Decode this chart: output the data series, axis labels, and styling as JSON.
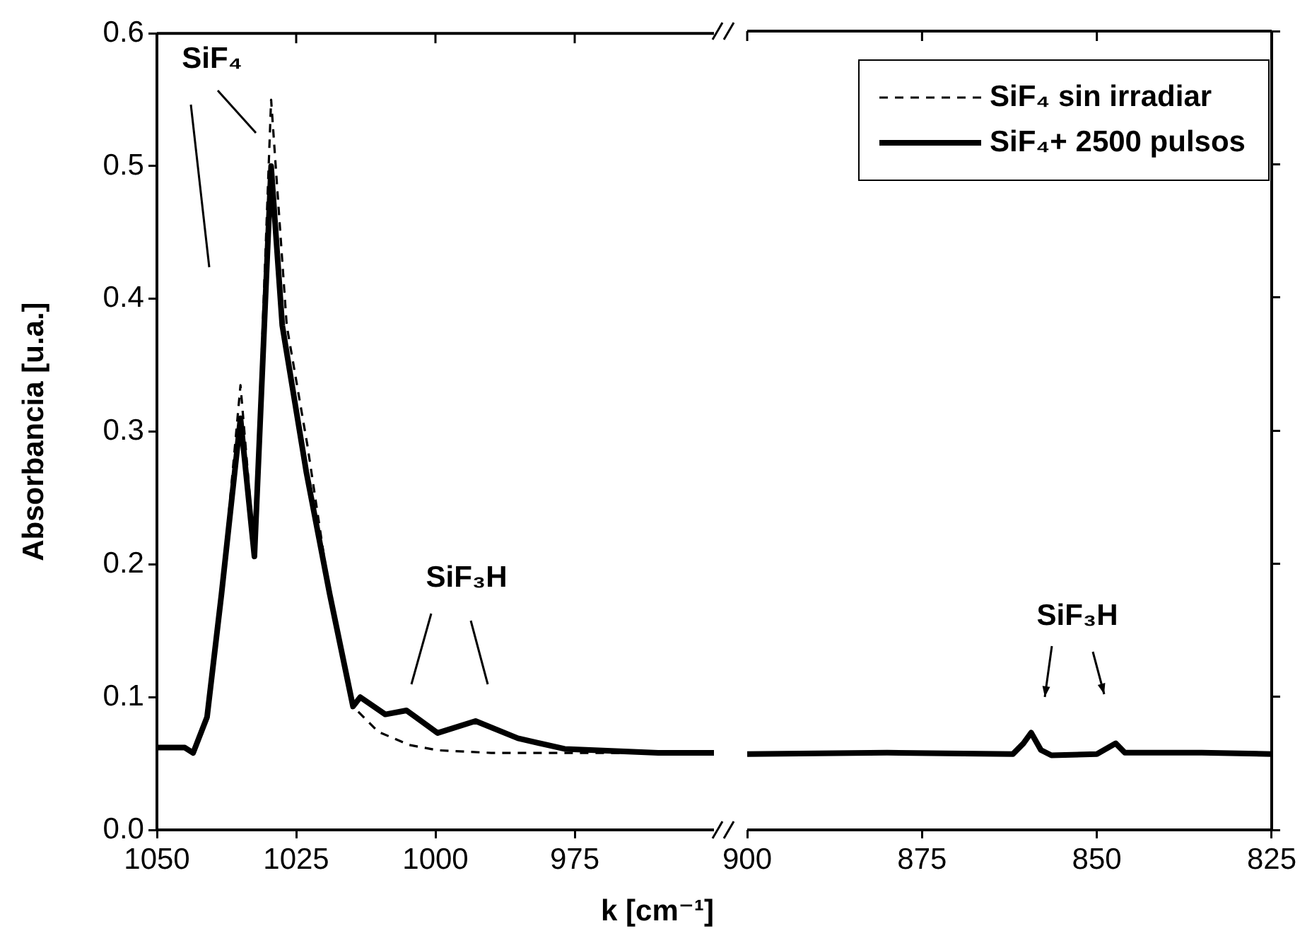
{
  "chart_data": [
    {
      "type": "line",
      "xlabel": "k [cm⁻¹]",
      "ylabel": "Absorbancia [u.a.]",
      "xlim": [
        1050,
        950
      ],
      "xticks": [
        1050,
        1025,
        1000,
        975
      ],
      "ylim": [
        0,
        0.6
      ],
      "yticks": [
        {
          "value": 0,
          "label": "0.0"
        },
        0.1,
        0.2,
        0.3,
        0.4,
        0.5,
        0.6
      ],
      "annotations": [
        "SiF₄",
        "SiF₃H"
      ],
      "series": [
        {
          "color": "#000000",
          "line_style": "dashed",
          "x": [
            1050,
            1045,
            1043.5,
            1041,
            1038.4,
            1035,
            1032.5,
            1029.5,
            1026.7,
            1023,
            1019,
            1014.8,
            1010.3,
            1004.7,
            999.6,
            990,
            970,
            950
          ],
          "values": [
            0.062,
            0.062,
            0.058,
            0.085,
            0.178,
            0.335,
            0.21,
            0.55,
            0.38,
            0.29,
            0.178,
            0.093,
            0.074,
            0.064,
            0.06,
            0.058,
            0.058,
            0.058
          ]
        },
        {
          "color": "#000000",
          "line_style": "solid",
          "x": [
            1050,
            1045,
            1043.5,
            1041,
            1038.4,
            1035,
            1032.5,
            1029.5,
            1027.5,
            1023.2,
            1019,
            1014.8,
            1013.5,
            1009,
            1005.2,
            999.6,
            992.8,
            985.2,
            976.8,
            960,
            950
          ],
          "values": [
            0.062,
            0.062,
            0.058,
            0.085,
            0.178,
            0.31,
            0.206,
            0.5,
            0.38,
            0.27,
            0.178,
            0.093,
            0.1,
            0.087,
            0.09,
            0.073,
            0.082,
            0.069,
            0.061,
            0.058,
            0.058
          ]
        }
      ]
    },
    {
      "type": "line",
      "xlim": [
        900,
        825
      ],
      "xticks": [
        900,
        875,
        850,
        825
      ],
      "ylim": [
        0,
        0.6
      ],
      "yticks": [
        0,
        0.1,
        0.2,
        0.3,
        0.4,
        0.5,
        0.6
      ],
      "tick_labels": "x",
      "legend": "top right",
      "annotations": [
        "SiF₃H"
      ],
      "series": [
        {
          "name": "SiF₄ sin irradiar",
          "color": "#000000",
          "line_style": "dashed"
        },
        {
          "name": "SiF₄+ 2500 pulsos",
          "color": "#000000",
          "line_style": "solid",
          "x": [
            900,
            880,
            862,
            860.5,
            859.4,
            858,
            856.5,
            850,
            847.3,
            846,
            835,
            825
          ],
          "values": [
            0.057,
            0.058,
            0.057,
            0.065,
            0.073,
            0.06,
            0.056,
            0.057,
            0.065,
            0.058,
            0.058,
            0.057
          ]
        }
      ]
    }
  ]
}
